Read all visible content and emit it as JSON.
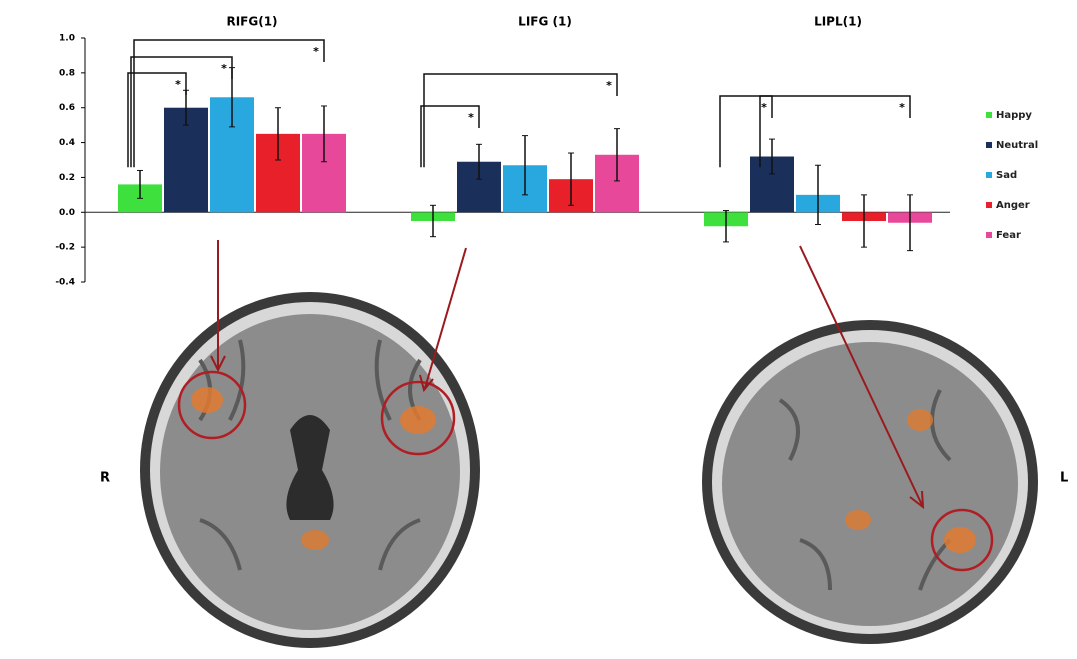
{
  "chart_data": {
    "type": "bar",
    "group_titles": [
      "RIFG(1)",
      "LIFG  (1)",
      "LIPL(1)"
    ],
    "categories": [
      "RIFG(1)",
      "LIFG  (1)",
      "LIPL(1)"
    ],
    "series": [
      {
        "name": "Happy",
        "color": "#3ee03e",
        "values": [
          0.16,
          -0.05,
          -0.08
        ],
        "errors": [
          0.08,
          0.09,
          0.09
        ]
      },
      {
        "name": "Neutral",
        "color": "#1a2f5a",
        "values": [
          0.6,
          0.29,
          0.32
        ],
        "errors": [
          0.1,
          0.1,
          0.1
        ]
      },
      {
        "name": "Sad",
        "color": "#29a8e0",
        "values": [
          0.66,
          0.27,
          0.1
        ],
        "errors": [
          0.17,
          0.17,
          0.17
        ]
      },
      {
        "name": "Anger",
        "color": "#e8202a",
        "values": [
          0.45,
          0.19,
          -0.05
        ],
        "errors": [
          0.15,
          0.15,
          0.15
        ]
      },
      {
        "name": "Fear",
        "color": "#e8489a",
        "values": [
          0.45,
          0.33,
          -0.06
        ],
        "errors": [
          0.16,
          0.15,
          0.16
        ]
      }
    ],
    "ylim": [
      -0.4,
      1.0
    ],
    "yticks": [
      {
        "value": 1.0,
        "label": "1.0"
      },
      0.8,
      0.6,
      0.4,
      0.2,
      {
        "value": 0,
        "label": "0.0"
      },
      -0.2,
      -0.4
    ],
    "annotations": [
      "*",
      "*",
      "*",
      "*",
      "*",
      "*",
      "*"
    ]
  },
  "image_labels": [
    "R",
    "L"
  ]
}
